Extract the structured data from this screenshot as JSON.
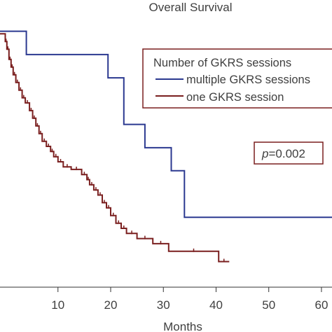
{
  "chart_data": {
    "type": "line",
    "title": "Overall Survival",
    "xlabel": "Months",
    "ylabel": "",
    "xlim": [
      -1,
      62
    ],
    "ylim": [
      0,
      1.04
    ],
    "x_ticks": [
      10,
      20,
      30,
      40,
      50,
      60
    ],
    "x_tick_labels": [
      "10",
      "20",
      "30",
      "40",
      "50",
      "60"
    ],
    "grid": false,
    "legend": {
      "title": "Number of GKRS sessions",
      "placement": "top-right"
    },
    "annotation": {
      "p_label": "p",
      "p_value": "=0.002"
    },
    "series": [
      {
        "name": "multiple GKRS sessions",
        "color": "#2b3990",
        "points": [
          [
            -1,
            1.0
          ],
          [
            4,
            1.0
          ],
          [
            4,
            0.909
          ],
          [
            19.5,
            0.909
          ],
          [
            19.5,
            0.818
          ],
          [
            22.5,
            0.818
          ],
          [
            22.5,
            0.636
          ],
          [
            26.5,
            0.636
          ],
          [
            26.5,
            0.545
          ],
          [
            31.5,
            0.545
          ],
          [
            31.5,
            0.455
          ],
          [
            34,
            0.455
          ],
          [
            34,
            0.273
          ],
          [
            62,
            0.273
          ]
        ]
      },
      {
        "name": "one GKRS session",
        "color": "#7a1f1f",
        "points": [
          [
            -1,
            0.99
          ],
          [
            0,
            0.99
          ],
          [
            0,
            0.96
          ],
          [
            0.3,
            0.96
          ],
          [
            0.3,
            0.93
          ],
          [
            0.7,
            0.93
          ],
          [
            0.7,
            0.89
          ],
          [
            1.1,
            0.89
          ],
          [
            1.1,
            0.86
          ],
          [
            1.5,
            0.86
          ],
          [
            1.5,
            0.83
          ],
          [
            2,
            0.83
          ],
          [
            2,
            0.8
          ],
          [
            2.6,
            0.8
          ],
          [
            2.6,
            0.77
          ],
          [
            3.2,
            0.77
          ],
          [
            3.2,
            0.74
          ],
          [
            3.8,
            0.74
          ],
          [
            3.8,
            0.72
          ],
          [
            4.6,
            0.72
          ],
          [
            4.6,
            0.69
          ],
          [
            5.2,
            0.69
          ],
          [
            5.2,
            0.66
          ],
          [
            5.8,
            0.66
          ],
          [
            5.8,
            0.63
          ],
          [
            6.4,
            0.63
          ],
          [
            6.4,
            0.6
          ],
          [
            7,
            0.6
          ],
          [
            7,
            0.57
          ],
          [
            7.8,
            0.57
          ],
          [
            7.8,
            0.55
          ],
          [
            8.6,
            0.55
          ],
          [
            8.6,
            0.53
          ],
          [
            9.2,
            0.53
          ],
          [
            9.2,
            0.51
          ],
          [
            10,
            0.51
          ],
          [
            10,
            0.49
          ],
          [
            11,
            0.49
          ],
          [
            11,
            0.47
          ],
          [
            12.5,
            0.47
          ],
          [
            12.5,
            0.46
          ],
          [
            14.5,
            0.46
          ],
          [
            14.5,
            0.44
          ],
          [
            15.5,
            0.44
          ],
          [
            15.5,
            0.42
          ],
          [
            16,
            0.42
          ],
          [
            16,
            0.4
          ],
          [
            16.8,
            0.4
          ],
          [
            16.8,
            0.38
          ],
          [
            17.6,
            0.38
          ],
          [
            17.6,
            0.36
          ],
          [
            18.4,
            0.36
          ],
          [
            18.4,
            0.33
          ],
          [
            19.2,
            0.33
          ],
          [
            19.2,
            0.31
          ],
          [
            20,
            0.31
          ],
          [
            20,
            0.28
          ],
          [
            21,
            0.28
          ],
          [
            21,
            0.25
          ],
          [
            22,
            0.25
          ],
          [
            22,
            0.23
          ],
          [
            23,
            0.23
          ],
          [
            23,
            0.21
          ],
          [
            25,
            0.21
          ],
          [
            25,
            0.19
          ],
          [
            28,
            0.19
          ],
          [
            28,
            0.17
          ],
          [
            31,
            0.17
          ],
          [
            31,
            0.14
          ],
          [
            40.5,
            0.14
          ],
          [
            40.5,
            0.1
          ],
          [
            42.5,
            0.1
          ]
        ]
      }
    ]
  }
}
